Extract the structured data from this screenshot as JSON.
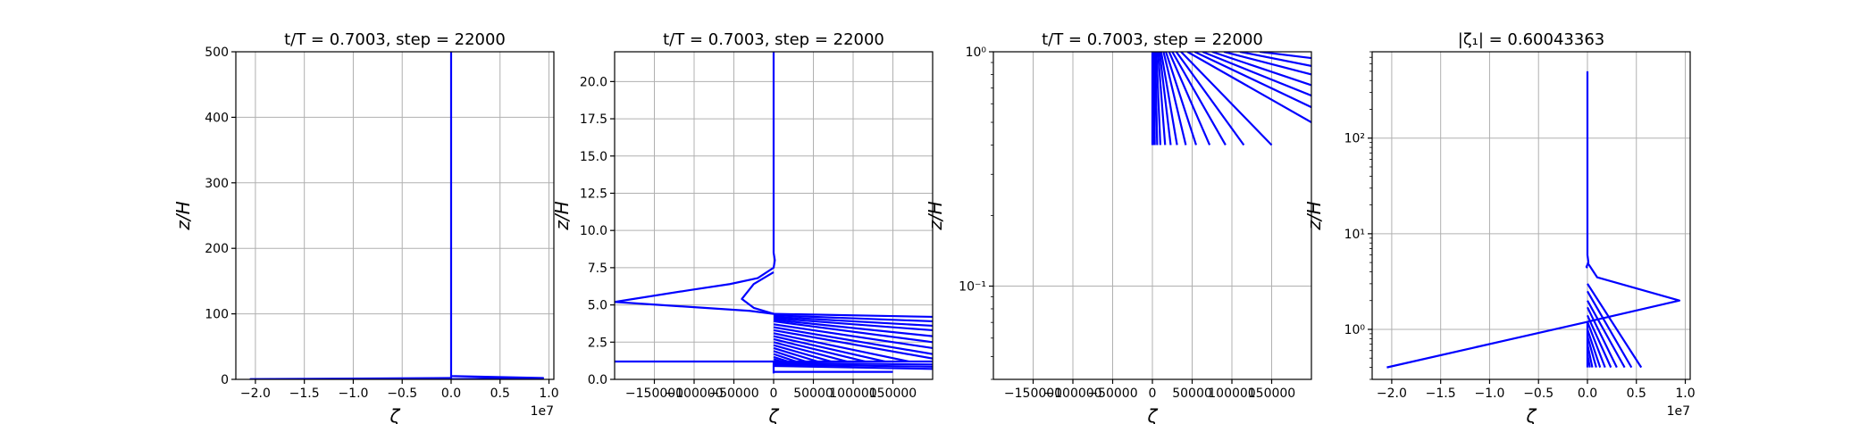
{
  "chart_data": [
    {
      "id": "p1",
      "type": "line",
      "title": "t/T = 0.7003, step = 22000",
      "xlabel": "ζ",
      "ylabel": "z/H",
      "x_multiplier": "1e7",
      "xlim": [
        -22000000.0,
        10500000.0
      ],
      "ylim": [
        0,
        500
      ],
      "yscale": "linear",
      "grid": true,
      "xticks": [
        -20000000.0,
        -15000000.0,
        -10000000.0,
        -5000000.0,
        0,
        5000000.0,
        10000000.0
      ],
      "xticklabels": [
        "−2.0",
        "−1.5",
        "−1.0",
        "−0.5",
        "0.0",
        "0.5",
        "1.0"
      ],
      "yticks": [
        0,
        100,
        200,
        300,
        400,
        500
      ],
      "yticklabels": [
        "0",
        "100",
        "200",
        "300",
        "400",
        "500"
      ],
      "color": "#0000ff",
      "series": [
        {
          "x": [
            0,
            0,
            0
          ],
          "y": [
            500,
            5,
            0.4
          ]
        },
        {
          "x": [
            0,
            9400000.0,
            0
          ],
          "y": [
            5,
            2,
            0.4
          ]
        },
        {
          "x": [
            0,
            -20500000.0,
            0
          ],
          "y": [
            2,
            0.4,
            0.4
          ]
        },
        {
          "x": [
            0,
            100000.0
          ],
          "y": [
            500,
            500
          ]
        }
      ]
    },
    {
      "id": "p2",
      "type": "line",
      "title": "t/T = 0.7003, step = 22000",
      "xlabel": "ζ",
      "ylabel": "z/H",
      "xlim": [
        -200000,
        200000
      ],
      "ylim": [
        0,
        22
      ],
      "yscale": "linear",
      "grid": true,
      "xticks": [
        -150000,
        -100000,
        -50000,
        0,
        50000,
        100000,
        150000
      ],
      "xticklabels": [
        "−150000",
        "−100000",
        "−50000",
        "0",
        "50000",
        "100000",
        "150000"
      ],
      "yticks": [
        0,
        2.5,
        5,
        7.5,
        10,
        12.5,
        15,
        17.5,
        20
      ],
      "yticklabels": [
        "0.0",
        "2.5",
        "5.0",
        "7.5",
        "10.0",
        "12.5",
        "15.0",
        "17.5",
        "20.0"
      ],
      "color": "#0000ff",
      "series": [
        {
          "x": [
            0,
            0,
            0,
            1500,
            0,
            -20000,
            -55000,
            -105000,
            -200000
          ],
          "y": [
            22,
            10,
            8.5,
            8.0,
            7.5,
            6.8,
            6.4,
            6.0,
            5.2
          ]
        },
        {
          "x": [
            -200000,
            -30000,
            0
          ],
          "y": [
            5.2,
            4.6,
            4.4
          ]
        },
        {
          "x": [
            0,
            -25000,
            -40000,
            -25000,
            0
          ],
          "y": [
            7.2,
            6.4,
            5.4,
            4.8,
            4.4
          ]
        },
        {
          "x": [
            0,
            200000
          ],
          "y": [
            4.4,
            4.2
          ]
        },
        {
          "x": [
            0,
            200000
          ],
          "y": [
            4.3,
            3.9
          ]
        },
        {
          "x": [
            0,
            200000
          ],
          "y": [
            4.2,
            3.6
          ]
        },
        {
          "x": [
            0,
            200000
          ],
          "y": [
            4.1,
            3.3
          ]
        },
        {
          "x": [
            0,
            200000
          ],
          "y": [
            4.0,
            2.9
          ]
        },
        {
          "x": [
            0,
            200000
          ],
          "y": [
            3.9,
            2.5
          ]
        },
        {
          "x": [
            0,
            200000
          ],
          "y": [
            3.7,
            2.1
          ]
        },
        {
          "x": [
            0,
            200000
          ],
          "y": [
            3.5,
            1.7
          ]
        },
        {
          "x": [
            0,
            200000
          ],
          "y": [
            3.3,
            1.4
          ]
        },
        {
          "x": [
            0,
            170000
          ],
          "y": [
            3.1,
            1.2
          ]
        },
        {
          "x": [
            0,
            140000
          ],
          "y": [
            2.9,
            1.2
          ]
        },
        {
          "x": [
            0,
            115000
          ],
          "y": [
            2.7,
            1.2
          ]
        },
        {
          "x": [
            0,
            92000
          ],
          "y": [
            2.5,
            1.2
          ]
        },
        {
          "x": [
            0,
            72000
          ],
          "y": [
            2.3,
            1.2
          ]
        },
        {
          "x": [
            0,
            55000
          ],
          "y": [
            2.1,
            1.2
          ]
        },
        {
          "x": [
            0,
            40000
          ],
          "y": [
            1.9,
            1.2
          ]
        },
        {
          "x": [
            0,
            28000
          ],
          "y": [
            1.7,
            1.2
          ]
        },
        {
          "x": [
            0,
            18000
          ],
          "y": [
            1.5,
            1.2
          ]
        },
        {
          "x": [
            0,
            10000
          ],
          "y": [
            1.35,
            1.2
          ]
        },
        {
          "x": [
            -200000,
            0
          ],
          "y": [
            1.2,
            1.2
          ]
        },
        {
          "x": [
            0,
            200000
          ],
          "y": [
            1.2,
            1.2
          ]
        },
        {
          "x": [
            0,
            200000
          ],
          "y": [
            1.1,
            1.0
          ]
        },
        {
          "x": [
            0,
            200000
          ],
          "y": [
            1.0,
            0.85
          ]
        },
        {
          "x": [
            0,
            200000
          ],
          "y": [
            0.9,
            0.7
          ]
        },
        {
          "x": [
            0,
            5000,
            30000,
            60000,
            90000,
            120000,
            150000
          ],
          "y": [
            0.5,
            0.5,
            0.5,
            0.5,
            0.5,
            0.5,
            0.5
          ]
        },
        {
          "x": [
            0,
            0
          ],
          "y": [
            1.2,
            0.4
          ]
        }
      ]
    },
    {
      "id": "p3",
      "type": "line",
      "title": "t/T = 0.7003, step = 22000",
      "xlabel": "ζ",
      "ylabel": "z/H",
      "xlim": [
        -200000,
        200000
      ],
      "ylim": [
        0.04,
        1.0
      ],
      "yscale": "log",
      "grid": true,
      "xticks": [
        -150000,
        -100000,
        -50000,
        0,
        50000,
        100000,
        150000
      ],
      "xticklabels": [
        "−150000",
        "−100000",
        "−50000",
        "0",
        "50000",
        "100000",
        "150000"
      ],
      "yticks": [
        0.1,
        1.0
      ],
      "yticklabels": [
        "10⁻¹",
        "10⁰"
      ],
      "color": "#0000ff",
      "series": [
        {
          "x": [
            0,
            0
          ],
          "y": [
            1.0,
            0.4
          ]
        },
        {
          "x": [
            1000,
            1000
          ],
          "y": [
            1.0,
            0.4
          ]
        },
        {
          "x": [
            2200,
            3000
          ],
          "y": [
            1.0,
            0.4
          ]
        },
        {
          "x": [
            3500,
            6000
          ],
          "y": [
            1.0,
            0.4
          ]
        },
        {
          "x": [
            5000,
            10000
          ],
          "y": [
            1.0,
            0.4
          ]
        },
        {
          "x": [
            7000,
            16000
          ],
          "y": [
            1.0,
            0.4
          ]
        },
        {
          "x": [
            9000,
            23000
          ],
          "y": [
            1.0,
            0.4
          ]
        },
        {
          "x": [
            11000,
            31000
          ],
          "y": [
            1.0,
            0.4
          ]
        },
        {
          "x": [
            14000,
            42000
          ],
          "y": [
            1.0,
            0.4
          ]
        },
        {
          "x": [
            17000,
            55000
          ],
          "y": [
            1.0,
            0.4
          ]
        },
        {
          "x": [
            21000,
            72000
          ],
          "y": [
            1.0,
            0.4
          ]
        },
        {
          "x": [
            25000,
            92000
          ],
          "y": [
            1.0,
            0.4
          ]
        },
        {
          "x": [
            30000,
            115000
          ],
          "y": [
            1.0,
            0.4
          ]
        },
        {
          "x": [
            36000,
            150000
          ],
          "y": [
            1.0,
            0.4
          ]
        },
        {
          "x": [
            44000,
            200000
          ],
          "y": [
            1.0,
            0.5
          ]
        },
        {
          "x": [
            53000,
            200000
          ],
          "y": [
            1.0,
            0.58
          ]
        },
        {
          "x": [
            63000,
            200000
          ],
          "y": [
            1.0,
            0.65
          ]
        },
        {
          "x": [
            75000,
            200000
          ],
          "y": [
            1.0,
            0.72
          ]
        },
        {
          "x": [
            90000,
            200000
          ],
          "y": [
            1.0,
            0.8
          ]
        },
        {
          "x": [
            110000,
            200000
          ],
          "y": [
            1.0,
            0.87
          ]
        },
        {
          "x": [
            135000,
            200000
          ],
          "y": [
            1.0,
            0.94
          ]
        }
      ]
    },
    {
      "id": "p4",
      "type": "line",
      "title": "|ζ₁| = 0.60043363",
      "xlabel": "ζ",
      "ylabel": "z/H",
      "x_multiplier": "1e7",
      "xlim": [
        -22000000.0,
        10500000.0
      ],
      "ylim": [
        0.3,
        800
      ],
      "yscale": "log",
      "grid": true,
      "xticks": [
        -20000000.0,
        -15000000.0,
        -10000000.0,
        -5000000.0,
        0,
        5000000.0,
        10000000.0
      ],
      "xticklabels": [
        "−2.0",
        "−1.5",
        "−1.0",
        "−0.5",
        "0.0",
        "0.5",
        "1.0"
      ],
      "yticks": [
        1,
        10,
        100
      ],
      "yticklabels": [
        "10⁰",
        "10¹",
        "10²"
      ],
      "color": "#0000ff",
      "series": [
        {
          "x": [
            0,
            0,
            100000.0,
            -100000.0,
            0
          ],
          "y": [
            500,
            6,
            5,
            4.5,
            4.4
          ]
        },
        {
          "x": [
            0,
            1000000.0,
            9400000.0,
            0,
            -20500000.0
          ],
          "y": [
            5,
            3.5,
            2,
            1.2,
            0.4
          ]
        },
        {
          "x": [
            0,
            5500000.0
          ],
          "y": [
            3,
            0.4
          ]
        },
        {
          "x": [
            0,
            4500000.0
          ],
          "y": [
            2.5,
            0.4
          ]
        },
        {
          "x": [
            0,
            3800000.0
          ],
          "y": [
            2,
            0.4
          ]
        },
        {
          "x": [
            0,
            3000000.0
          ],
          "y": [
            1.7,
            0.4
          ]
        },
        {
          "x": [
            0,
            2400000.0
          ],
          "y": [
            1.4,
            0.4
          ]
        },
        {
          "x": [
            0,
            1800000.0
          ],
          "y": [
            1.2,
            0.4
          ]
        },
        {
          "x": [
            0,
            1300000.0
          ],
          "y": [
            1.0,
            0.4
          ]
        },
        {
          "x": [
            0,
            900000.0
          ],
          "y": [
            0.85,
            0.4
          ]
        },
        {
          "x": [
            0,
            500000.0
          ],
          "y": [
            0.7,
            0.4
          ]
        },
        {
          "x": [
            0,
            250000.0
          ],
          "y": [
            0.55,
            0.4
          ]
        },
        {
          "x": [
            0,
            0
          ],
          "y": [
            1.2,
            0.4
          ]
        }
      ]
    }
  ]
}
